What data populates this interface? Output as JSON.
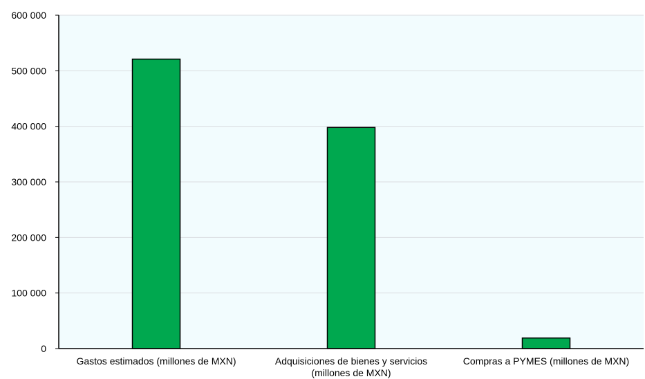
{
  "chart_data": {
    "type": "bar",
    "title": "",
    "xlabel": "",
    "ylabel": "",
    "categories": [
      [
        "Gastos estimados (millones de MXN)"
      ],
      [
        "Adquisiciones de bienes y servicios",
        "(millones de MXN)"
      ],
      [
        "Compras a PYMES (millones de MXN)"
      ]
    ],
    "values": [
      521000,
      398000,
      19000
    ],
    "ylim": [
      0,
      600000
    ],
    "yticks": [
      0,
      100000,
      200000,
      300000,
      400000,
      500000,
      600000
    ],
    "ytick_labels": [
      "0",
      "100 000",
      "200 000",
      "300 000",
      "400 000",
      "500 000",
      "600 000"
    ],
    "grid": true,
    "legend": "none",
    "colors": {
      "bar": "#00A84F",
      "bar_outline": "#000000",
      "plot_background": "#F2FCFE",
      "gridline": "#D9DDE0",
      "axis": "#000000"
    }
  }
}
